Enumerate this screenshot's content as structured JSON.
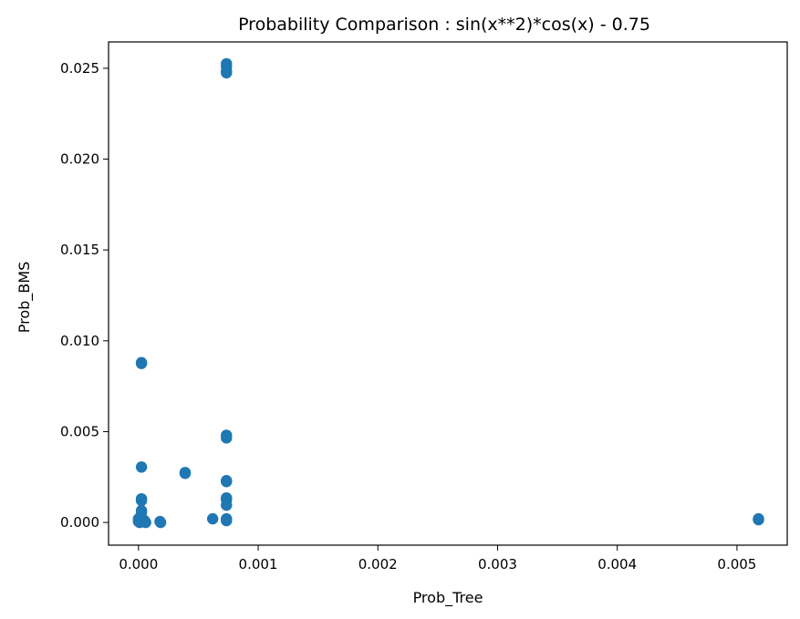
{
  "chart_data": {
    "type": "scatter",
    "title": "Probability Comparison : sin(x**2)*cos(x) - 0.75",
    "xlabel": "Prob_Tree",
    "ylabel": "Prob_BMS",
    "xlim": [
      -0.00025,
      0.00542
    ],
    "ylim": [
      -0.00125,
      0.02645
    ],
    "xticks": [
      0.0,
      0.001,
      0.002,
      0.003,
      0.004,
      0.005
    ],
    "xtick_labels": [
      "0.000",
      "0.001",
      "0.002",
      "0.003",
      "0.004",
      "0.005"
    ],
    "yticks": [
      0.0,
      0.005,
      0.01,
      0.015,
      0.02,
      0.025
    ],
    "ytick_labels": [
      "0.000",
      "0.005",
      "0.010",
      "0.015",
      "0.020",
      "0.025"
    ],
    "grid": false,
    "marker_color": "#1f77b4",
    "points": [
      {
        "x": 0.000735,
        "y": 0.02525
      },
      {
        "x": 0.000735,
        "y": 0.0251
      },
      {
        "x": 0.000735,
        "y": 0.02485
      },
      {
        "x": 0.000735,
        "y": 0.02475
      },
      {
        "x": 2.5e-05,
        "y": 0.0088
      },
      {
        "x": 2.5e-05,
        "y": 0.00875
      },
      {
        "x": 0.000735,
        "y": 0.0048
      },
      {
        "x": 0.000735,
        "y": 0.00465
      },
      {
        "x": 2.5e-05,
        "y": 0.00305
      },
      {
        "x": 0.00039,
        "y": 0.00275
      },
      {
        "x": 0.00039,
        "y": 0.0027
      },
      {
        "x": 0.000735,
        "y": 0.0023
      },
      {
        "x": 0.000735,
        "y": 0.00225
      },
      {
        "x": 0.000735,
        "y": 0.00135
      },
      {
        "x": 0.000735,
        "y": 0.00125
      },
      {
        "x": 0.000735,
        "y": 0.00095
      },
      {
        "x": 2.5e-05,
        "y": 0.0013
      },
      {
        "x": 2.5e-05,
        "y": 0.0012
      },
      {
        "x": 2.5e-05,
        "y": 0.00065
      },
      {
        "x": 2.5e-05,
        "y": 0.00055
      },
      {
        "x": 0.0,
        "y": 0.0002
      },
      {
        "x": 0.0,
        "y": 5e-05
      },
      {
        "x": 1e-05,
        "y": 0.0
      },
      {
        "x": 5e-05,
        "y": 0.0001
      },
      {
        "x": 6e-05,
        "y": 0.0
      },
      {
        "x": 0.000185,
        "y": 0.0
      },
      {
        "x": 0.00018,
        "y": 5e-05
      },
      {
        "x": 0.00062,
        "y": 0.0002
      },
      {
        "x": 0.000735,
        "y": 0.0002
      },
      {
        "x": 0.000735,
        "y": 0.0001
      },
      {
        "x": 0.00518,
        "y": 0.0002
      },
      {
        "x": 0.00518,
        "y": 0.00015
      }
    ]
  }
}
